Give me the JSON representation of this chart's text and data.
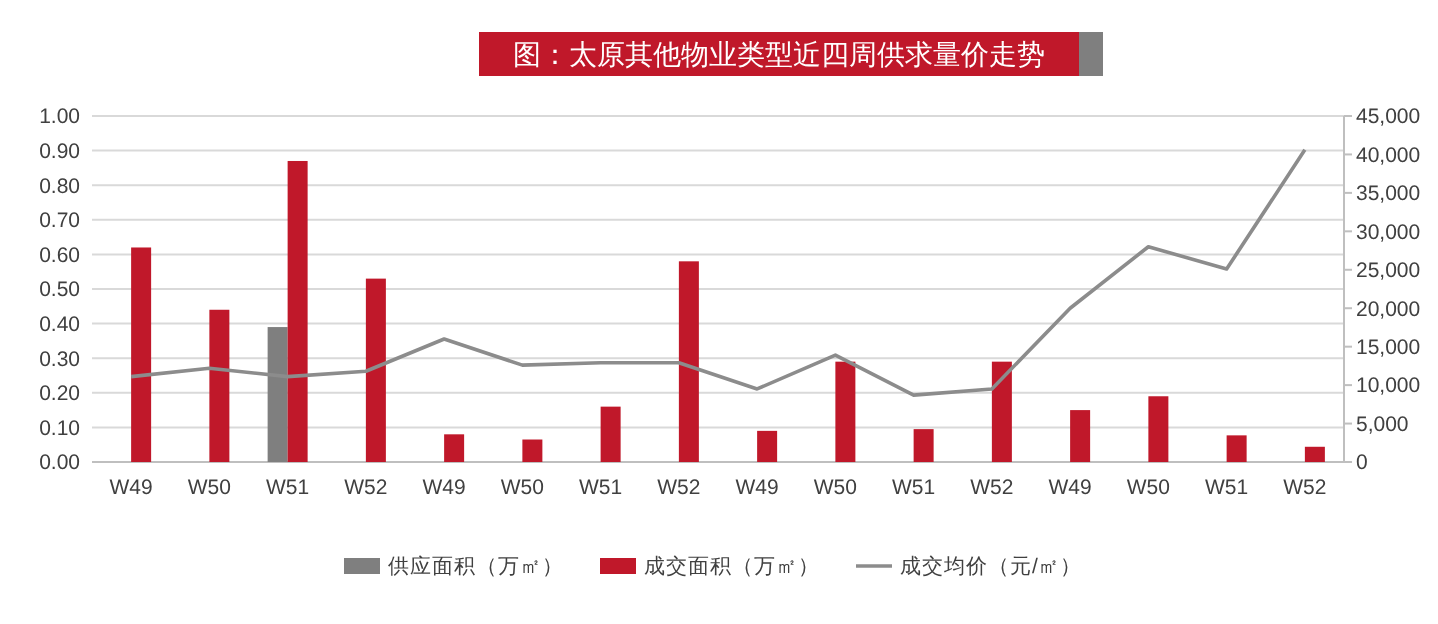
{
  "chart_data": {
    "type": "bar",
    "title": "图：太原其他物业类型近四周供求量价走势",
    "categories": [
      "W49",
      "W50",
      "W51",
      "W52",
      "W49",
      "W50",
      "W51",
      "W52",
      "W49",
      "W50",
      "W51",
      "W52",
      "W49",
      "W50",
      "W51",
      "W52"
    ],
    "series": [
      {
        "name": "供应面积（万㎡）",
        "color": "#7f7f7f",
        "values": [
          null,
          null,
          0.39,
          null,
          null,
          null,
          null,
          null,
          null,
          null,
          null,
          null,
          null,
          null,
          null,
          null
        ]
      },
      {
        "name": "成交面积（万㎡）",
        "color": "#c0182a",
        "values": [
          0.62,
          0.44,
          0.87,
          0.53,
          0.08,
          0.065,
          0.16,
          0.58,
          0.09,
          0.29,
          0.095,
          0.29,
          0.15,
          0.19,
          0.077,
          0.044
        ]
      },
      {
        "name": "成交均价（元/㎡）",
        "type": "line",
        "axis": "y2",
        "color": "#8c8c8c",
        "values": [
          11100,
          12200,
          11100,
          11800,
          16000,
          12600,
          12900,
          12900,
          9500,
          13900,
          8700,
          9500,
          20000,
          28000,
          25100,
          40600
        ]
      }
    ],
    "ylim": [
      0,
      1
    ],
    "yticks": [
      {
        "value": 0,
        "label": "0.00"
      },
      {
        "value": 0.1,
        "label": "0.10"
      },
      {
        "value": 0.2,
        "label": "0.20"
      },
      {
        "value": 0.3,
        "label": "0.30"
      },
      {
        "value": 0.4,
        "label": "0.40"
      },
      {
        "value": 0.5,
        "label": "0.50"
      },
      {
        "value": 0.6,
        "label": "0.60"
      },
      {
        "value": 0.7,
        "label": "0.70"
      },
      {
        "value": 0.8,
        "label": "0.80"
      },
      {
        "value": 0.9,
        "label": "0.90"
      },
      {
        "value": 1,
        "label": "1.00"
      }
    ],
    "y2lim": [
      0,
      45000
    ],
    "y2ticks": [
      0,
      {
        "value": 5000,
        "label": "5,000"
      },
      {
        "value": 10000,
        "label": "10,000"
      },
      {
        "value": 15000,
        "label": "15,000"
      },
      {
        "value": 20000,
        "label": "20,000"
      },
      {
        "value": 25000,
        "label": "25,000"
      },
      {
        "value": 30000,
        "label": "30,000"
      },
      {
        "value": 35000,
        "label": "35,000"
      },
      {
        "value": 40000,
        "label": "40,000"
      },
      {
        "value": 45000,
        "label": "45,000"
      }
    ],
    "grid": "y",
    "legend": "bottom",
    "marker": "none"
  }
}
